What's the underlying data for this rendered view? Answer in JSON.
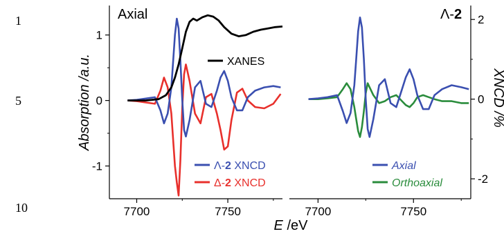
{
  "line_numbers": [
    "1",
    "5",
    "10"
  ],
  "colors": {
    "xanes": "#000000",
    "lambda_xncd": "#3a4fb0",
    "delta_xncd": "#e8302c",
    "axial": "#3a4fb0",
    "orthoaxial": "#2a8c3c"
  },
  "chart_data": [
    {
      "type": "line",
      "panel_label": "Axial",
      "xlabel": "E /eV",
      "ylabel": "Absorption /a.u.",
      "xlim": [
        7685,
        7780
      ],
      "ylim": [
        -1.5,
        1.45
      ],
      "x_ticks": [
        "7700",
        "7750"
      ],
      "y_ticks": [
        "1",
        "0",
        "-1"
      ],
      "series": [
        {
          "name": "XANES",
          "x": [
            7695,
            7705,
            7712,
            7716,
            7719,
            7721,
            7723,
            7725,
            7727,
            7729,
            7731,
            7733,
            7736,
            7739,
            7742,
            7745,
            7748,
            7752,
            7756,
            7760,
            7764,
            7768,
            7772,
            7776,
            7780
          ],
          "y": [
            0.0,
            0.0,
            0.02,
            0.08,
            0.2,
            0.35,
            0.55,
            0.8,
            1.05,
            1.2,
            1.25,
            1.22,
            1.27,
            1.3,
            1.28,
            1.22,
            1.12,
            1.02,
            0.98,
            1.0,
            1.05,
            1.08,
            1.1,
            1.12,
            1.13
          ]
        },
        {
          "name": "Λ-2 XNCD",
          "x": [
            7695,
            7700,
            7705,
            7710,
            7713,
            7715,
            7717,
            7719,
            7720,
            7721,
            7722,
            7723,
            7724,
            7725,
            7726,
            7727,
            7729,
            7732,
            7735,
            7738,
            7741,
            7744,
            7746,
            7748,
            7750,
            7752,
            7755,
            7758,
            7761,
            7765,
            7770,
            7775,
            7779
          ],
          "y": [
            0.0,
            0.01,
            0.03,
            0.05,
            -0.15,
            -0.35,
            -0.2,
            0.2,
            0.6,
            1.0,
            1.25,
            1.1,
            0.6,
            0.0,
            -0.45,
            -0.55,
            -0.3,
            0.2,
            0.3,
            -0.05,
            -0.1,
            0.15,
            0.35,
            0.45,
            0.3,
            0.05,
            -0.15,
            -0.15,
            0.05,
            0.15,
            0.2,
            0.22,
            0.2
          ]
        },
        {
          "name": "Δ-2 XNCD",
          "x": [
            7695,
            7700,
            7705,
            7710,
            7713,
            7715,
            7717,
            7719,
            7720,
            7721,
            7722,
            7723,
            7724,
            7725,
            7726,
            7727,
            7729,
            7732,
            7735,
            7738,
            7741,
            7744,
            7746,
            7748,
            7750,
            7752,
            7755,
            7758,
            7761,
            7765,
            7770,
            7775,
            7779
          ],
          "y": [
            0.0,
            -0.01,
            -0.03,
            -0.05,
            0.15,
            0.35,
            0.2,
            -0.2,
            -0.6,
            -1.0,
            -1.25,
            -1.45,
            -0.9,
            -0.1,
            0.4,
            0.55,
            0.3,
            -0.2,
            -0.35,
            0.05,
            0.1,
            -0.2,
            -0.45,
            -0.75,
            -0.7,
            -0.3,
            0.12,
            0.18,
            0.0,
            -0.1,
            -0.12,
            -0.05,
            0.1
          ]
        }
      ]
    },
    {
      "type": "line",
      "panel_label": "Λ-2",
      "ylabel": "XNCD /%",
      "xlim": [
        7685,
        7780
      ],
      "ylim": [
        -2.5,
        2.35
      ],
      "x_ticks": [
        "7700",
        "7750"
      ],
      "y_ticks": [
        "2",
        "0",
        "-2"
      ],
      "series": [
        {
          "name": "Axial",
          "x": [
            7695,
            7700,
            7705,
            7710,
            7713,
            7715,
            7717,
            7719,
            7720,
            7721,
            7722,
            7723,
            7724,
            7725,
            7726,
            7727,
            7729,
            7732,
            7735,
            7738,
            7741,
            7744,
            7746,
            7748,
            7750,
            7752,
            7755,
            7758,
            7761,
            7765,
            7770,
            7775,
            7779
          ],
          "y": [
            0.0,
            0.02,
            0.05,
            0.1,
            -0.3,
            -0.6,
            -0.35,
            0.35,
            1.0,
            1.7,
            2.05,
            1.8,
            1.0,
            0.0,
            -0.75,
            -0.95,
            -0.5,
            0.35,
            0.5,
            -0.1,
            -0.2,
            0.25,
            0.55,
            0.75,
            0.5,
            0.1,
            -0.25,
            -0.25,
            0.1,
            0.25,
            0.35,
            0.3,
            0.25
          ]
        },
        {
          "name": "Orthoaxial",
          "x": [
            7695,
            7700,
            7705,
            7710,
            7713,
            7715,
            7717,
            7719,
            7720,
            7721,
            7722,
            7723,
            7724,
            7725,
            7726,
            7727,
            7729,
            7732,
            7735,
            7738,
            7741,
            7744,
            7746,
            7748,
            7750,
            7752,
            7755,
            7758,
            7761,
            7765,
            7770,
            7775,
            7779
          ],
          "y": [
            0.0,
            0.0,
            0.02,
            0.05,
            0.25,
            0.4,
            0.25,
            -0.2,
            -0.5,
            -0.8,
            -0.95,
            -0.7,
            -0.3,
            0.15,
            0.4,
            0.3,
            0.1,
            -0.1,
            -0.05,
            0.05,
            0.1,
            -0.05,
            -0.15,
            -0.2,
            -0.1,
            0.05,
            0.1,
            0.05,
            0.0,
            -0.05,
            -0.05,
            -0.1,
            -0.1
          ]
        }
      ]
    }
  ]
}
